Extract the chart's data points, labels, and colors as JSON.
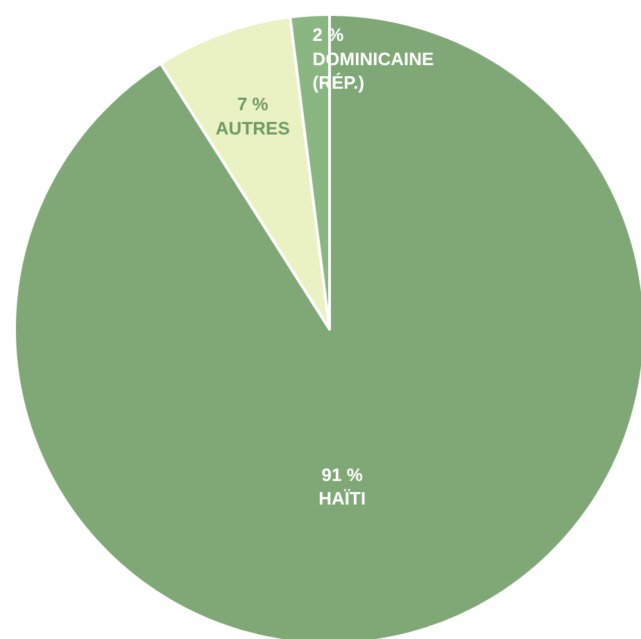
{
  "chart_data": {
    "type": "pie",
    "categories": [
      "HAÏTI",
      "AUTRES",
      "DOMINICAINE (RÉP.)"
    ],
    "values": [
      91,
      7,
      2
    ],
    "value_labels": [
      "91 %",
      "7 %",
      "2 %"
    ],
    "colors": [
      "#7fa876",
      "#eaf1c2",
      "#8ab682"
    ]
  }
}
